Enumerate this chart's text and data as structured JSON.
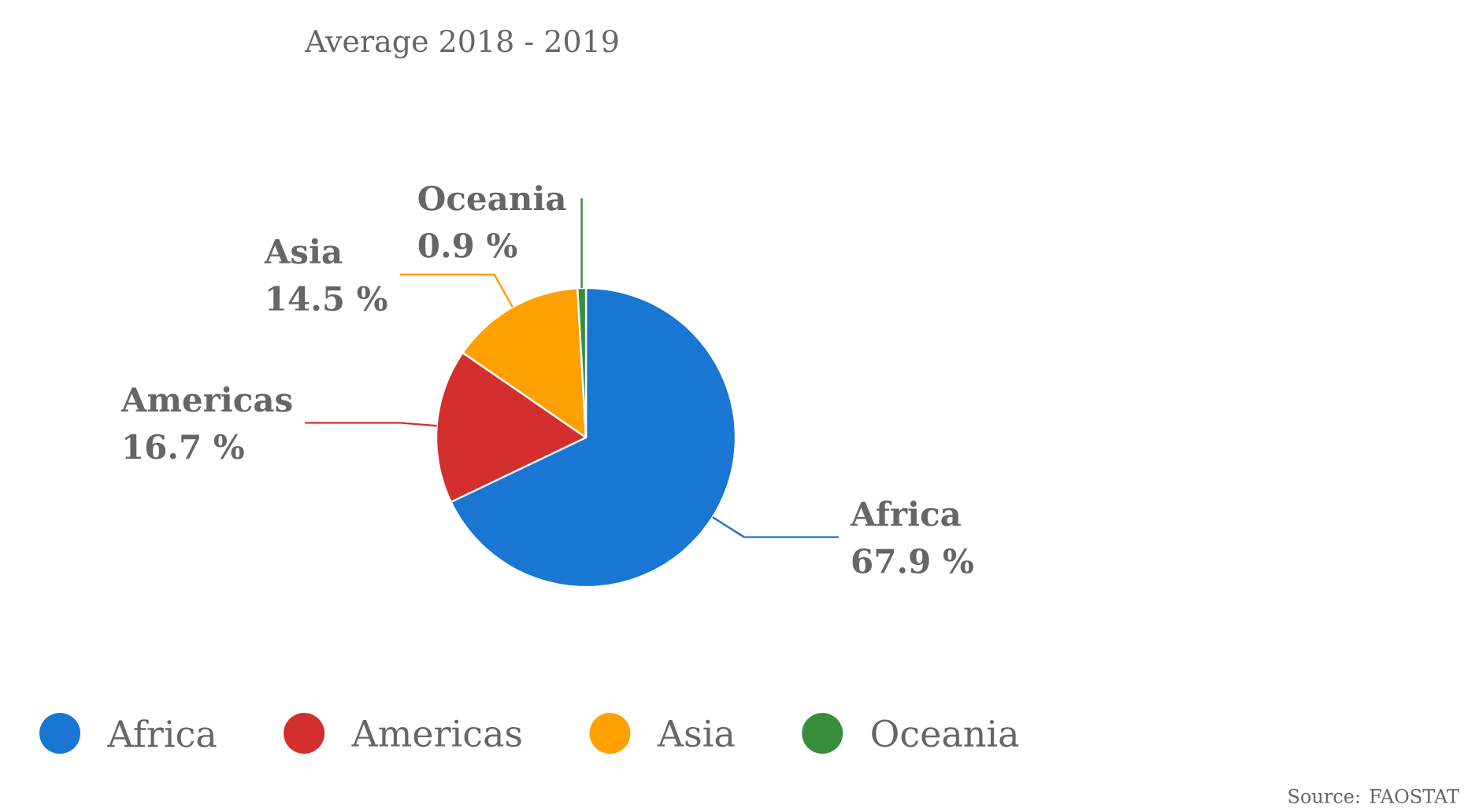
{
  "chart_data": {
    "type": "pie",
    "title": "Average 2018 - 2019",
    "categories": [
      "Africa",
      "Americas",
      "Asia",
      "Oceania"
    ],
    "values": [
      67.9,
      16.7,
      14.5,
      0.9
    ],
    "value_labels": [
      "67.9 %",
      "16.7 %",
      "14.5 %",
      "0.9 %"
    ],
    "colors": [
      "#1976d2",
      "#d32f2f",
      "#ffa000",
      "#388e3c"
    ],
    "legend": "bottom",
    "annotations": [
      "Source: FAOSTAT"
    ]
  }
}
